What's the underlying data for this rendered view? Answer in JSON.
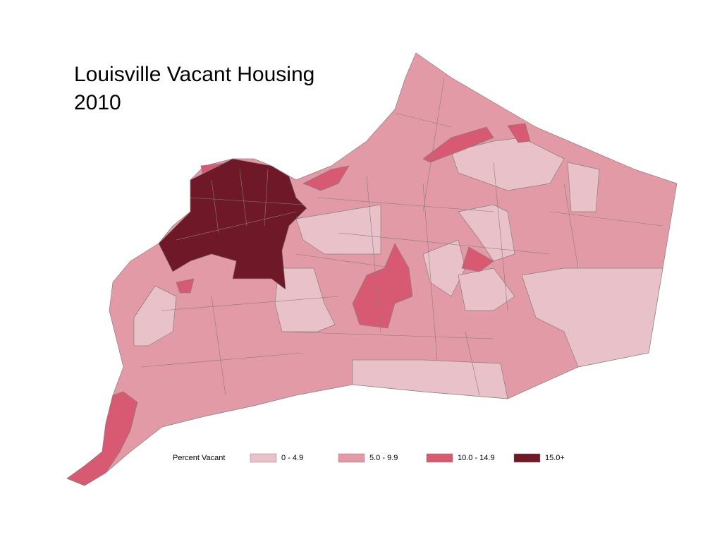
{
  "title": [
    "Louisville Vacant Housing",
    "2010"
  ],
  "legend": {
    "title": "Percent Vacant",
    "items": [
      {
        "label": "0 - 4.9",
        "color": "#e8c2c8"
      },
      {
        "label": "5.0 - 9.9",
        "color": "#e29aa6"
      },
      {
        "label": "10.0 - 14.9",
        "color": "#d85a72"
      },
      {
        "label": "15.0+",
        "color": "#6e1828"
      }
    ]
  }
}
